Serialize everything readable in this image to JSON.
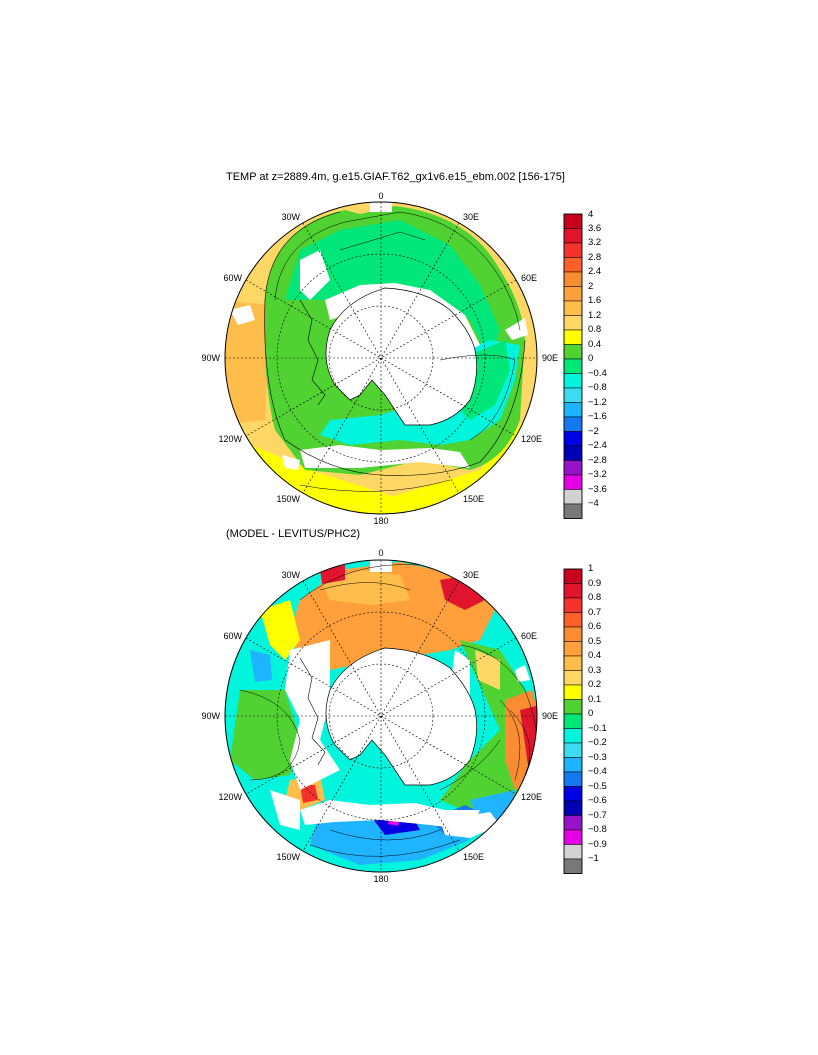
{
  "panels": [
    {
      "title": "TEMP at z=2889.4m, g.e15.GIAF.T62_gx1v6.e15_ebm.002 [156-175]",
      "longitude_labels": [
        "0",
        "30E",
        "60E",
        "90E",
        "120E",
        "150E",
        "180",
        "150W",
        "120W",
        "90W",
        "60W",
        "30W"
      ],
      "colorbar_labels": [
        "4",
        "3.6",
        "3.2",
        "2.8",
        "2.4",
        "2",
        "1.6",
        "1.2",
        "0.8",
        "0.4",
        "0",
        "−0.4",
        "−0.8",
        "−1.2",
        "−1.6",
        "−2",
        "−2.4",
        "−2.8",
        "−3.2",
        "−3.6",
        "−4"
      ],
      "colorbar_colors": [
        "#c8001e",
        "#e1142d",
        "#f5322d",
        "#ff5f28",
        "#fa8c32",
        "#ffa03c",
        "#ffbe4b",
        "#ffd764",
        "#ffff00",
        "#50d232",
        "#00e678",
        "#00f5dc",
        "#3cdcf0",
        "#1eb4ff",
        "#1478f0",
        "#0000e6",
        "#0000b4",
        "#9614c8",
        "#e600e6",
        "#d2d2d2",
        "#787878"
      ]
    },
    {
      "title": "(MODEL - LEVITUS/PHC2)",
      "longitude_labels": [
        "0",
        "30E",
        "60E",
        "90E",
        "120E",
        "150E",
        "180",
        "150W",
        "120W",
        "90W",
        "60W",
        "30W"
      ],
      "colorbar_labels": [
        "1",
        "0.9",
        "0.8",
        "0.7",
        "0.6",
        "0.5",
        "0.4",
        "0.3",
        "0.2",
        "0.1",
        "0",
        "−0.1",
        "−0.2",
        "−0.3",
        "−0.4",
        "−0.5",
        "−0.6",
        "−0.7",
        "−0.8",
        "−0.9",
        "−1"
      ],
      "colorbar_colors": [
        "#c8001e",
        "#e1142d",
        "#f5322d",
        "#ff5f28",
        "#fa8c32",
        "#ffa03c",
        "#ffbe4b",
        "#ffd764",
        "#ffff00",
        "#50d232",
        "#00e678",
        "#00f5dc",
        "#3cdcf0",
        "#1eb4ff",
        "#1478f0",
        "#0000e6",
        "#0000b4",
        "#9614c8",
        "#e600e6",
        "#d2d2d2",
        "#787878"
      ]
    }
  ]
}
